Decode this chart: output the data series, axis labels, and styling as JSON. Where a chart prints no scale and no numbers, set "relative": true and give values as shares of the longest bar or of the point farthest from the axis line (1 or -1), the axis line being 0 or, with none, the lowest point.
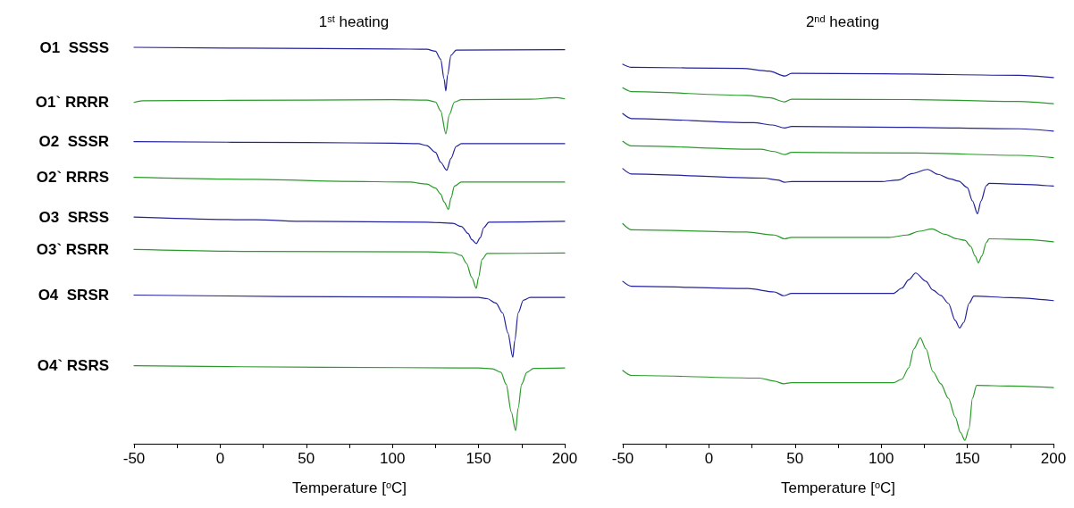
{
  "chart_data": [
    {
      "type": "line",
      "title": "1$^{st}$ heating",
      "xlabel": "Temperature [$^{o}$C]",
      "relative": true,
      "xlim": [
        -50,
        200
      ],
      "xticks": [
        -50,
        {
          "value": -25,
          "label": null
        },
        0,
        {
          "value": 25,
          "label": null
        },
        50,
        {
          "value": 75,
          "label": null
        },
        100,
        {
          "value": 125,
          "label": null
        },
        150,
        {
          "value": 175,
          "label": null
        },
        200
      ],
      "tick_labels": "x",
      "grid": false,
      "legend": false,
      "series": [
        {
          "name": "O1  SSSS",
          "color": "#22229a",
          "x": [
            -50,
            60,
            100,
            120,
            125,
            128,
            130,
            131,
            132,
            134,
            137,
            200
          ],
          "values": [
            1.0,
            0.997,
            0.996,
            0.995,
            0.99,
            0.97,
            0.92,
            0.89,
            0.93,
            0.98,
            0.993,
            0.994
          ]
        },
        {
          "name": "O1` RRRR",
          "color": "#2a9a2a",
          "x": [
            -50,
            -45,
            0,
            100,
            120,
            125,
            128,
            131,
            133,
            136,
            140,
            180,
            195,
            200
          ],
          "values": [
            0.861,
            0.865,
            0.866,
            0.868,
            0.867,
            0.862,
            0.84,
            0.782,
            0.83,
            0.862,
            0.868,
            0.869,
            0.873,
            0.87
          ]
        },
        {
          "name": "O2  SSSR",
          "color": "#22229a",
          "x": [
            -50,
            50,
            100,
            115,
            120,
            125,
            128,
            131.5,
            134,
            137,
            140,
            200
          ],
          "values": [
            0.762,
            0.76,
            0.758,
            0.757,
            0.752,
            0.735,
            0.71,
            0.69,
            0.72,
            0.75,
            0.757,
            0.757
          ]
        },
        {
          "name": "O2` RRRS",
          "color": "#2a9a2a",
          "x": [
            -50,
            20,
            70,
            110,
            120,
            125,
            128,
            130,
            132.5,
            134,
            136,
            140,
            200
          ],
          "values": [
            0.672,
            0.667,
            0.662,
            0.66,
            0.655,
            0.645,
            0.63,
            0.61,
            0.591,
            0.62,
            0.65,
            0.66,
            0.66
          ]
        },
        {
          "name": "O3  SRSS",
          "color": "#22229a",
          "x": [
            -50,
            20,
            50,
            120,
            135,
            140,
            144,
            146,
            148.7,
            151,
            153,
            156,
            200
          ],
          "values": [
            0.572,
            0.565,
            0.561,
            0.559,
            0.556,
            0.548,
            0.53,
            0.515,
            0.505,
            0.52,
            0.545,
            0.559,
            0.561
          ]
        },
        {
          "name": "O3` RSRR",
          "color": "#2a9a2a",
          "x": [
            -50,
            20,
            120,
            135,
            140,
            143,
            146,
            148.7,
            150,
            152,
            155,
            200
          ],
          "values": [
            0.49,
            0.485,
            0.484,
            0.482,
            0.475,
            0.455,
            0.42,
            0.392,
            0.42,
            0.465,
            0.48,
            0.481
          ]
        },
        {
          "name": "O4  SRSR",
          "color": "#22229a",
          "x": [
            -50,
            100,
            150,
            155,
            160,
            164,
            167,
            169.9,
            171,
            173,
            176,
            180,
            200
          ],
          "values": [
            0.375,
            0.37,
            0.369,
            0.366,
            0.355,
            0.33,
            0.28,
            0.218,
            0.26,
            0.33,
            0.362,
            0.369,
            0.369
          ]
        },
        {
          "name": "O4` RSRS",
          "color": "#2a9a2a",
          "x": [
            -50,
            60,
            150,
            158,
            163,
            166,
            169,
            171.5,
            173,
            175,
            178,
            182,
            200
          ],
          "values": [
            0.197,
            0.193,
            0.191,
            0.189,
            0.18,
            0.15,
            0.08,
            0.033,
            0.09,
            0.15,
            0.18,
            0.19,
            0.191
          ]
        }
      ]
    },
    {
      "type": "line",
      "title": "2$^{nd}$ heating",
      "xlabel": "Temperature [$^{o}$C]",
      "relative": true,
      "xlim": [
        -50,
        200
      ],
      "xticks": [
        -50,
        {
          "value": -25,
          "label": null
        },
        0,
        {
          "value": 25,
          "label": null
        },
        50,
        {
          "value": 75,
          "label": null
        },
        100,
        {
          "value": 125,
          "label": null
        },
        150,
        {
          "value": 175,
          "label": null
        },
        200
      ],
      "tick_labels": "x",
      "grid": false,
      "legend": false,
      "series": [
        {
          "color": "#22229a",
          "x": [
            -50,
            -45,
            19,
            35,
            44,
            48,
            100,
            180,
            200
          ],
          "values": [
            1.0,
            0.992,
            0.989,
            0.982,
            0.969,
            0.976,
            0.975,
            0.971,
            0.965
          ]
        },
        {
          "color": "#2a9a2a",
          "x": [
            -50,
            -45,
            22,
            35,
            44,
            48,
            120,
            180,
            200
          ],
          "values": [
            0.938,
            0.928,
            0.918,
            0.912,
            0.901,
            0.908,
            0.907,
            0.902,
            0.896
          ]
        },
        {
          "color": "#22229a",
          "x": [
            -50,
            -45,
            26,
            37,
            44,
            48,
            110,
            180,
            200
          ],
          "values": [
            0.87,
            0.857,
            0.846,
            0.84,
            0.832,
            0.836,
            0.834,
            0.83,
            0.824
          ]
        },
        {
          "color": "#2a9a2a",
          "x": [
            -50,
            -45,
            30,
            38,
            44,
            48,
            120,
            180,
            200
          ],
          "values": [
            0.797,
            0.785,
            0.776,
            0.77,
            0.762,
            0.768,
            0.766,
            0.76,
            0.754
          ]
        },
        {
          "color": "#22229a",
          "x": [
            -50,
            -45,
            32,
            40,
            44,
            48,
            100,
            110,
            118,
            126.9,
            133,
            140,
            145,
            150,
            153,
            155.9,
            158,
            161,
            162.7,
            180,
            200
          ],
          "values": [
            0.725,
            0.711,
            0.7,
            0.695,
            0.689,
            0.691,
            0.691,
            0.695,
            0.712,
            0.723,
            0.71,
            0.698,
            0.692,
            0.675,
            0.64,
            0.606,
            0.64,
            0.68,
            0.686,
            0.684,
            0.679
          ]
        },
        {
          "color": "#2a9a2a",
          "x": [
            -50,
            -45,
            22,
            38,
            44,
            48,
            105,
            115,
            122,
            129.5,
            137,
            144,
            148.6,
            152,
            154.5,
            156.4,
            158.5,
            161,
            162.7,
            185,
            200
          ],
          "values": [
            0.58,
            0.564,
            0.558,
            0.55,
            0.54,
            0.544,
            0.544,
            0.55,
            0.56,
            0.566,
            0.552,
            0.54,
            0.536,
            0.52,
            0.495,
            0.477,
            0.495,
            0.53,
            0.54,
            0.538,
            0.532
          ]
        },
        {
          "color": "#22229a",
          "x": [
            -50,
            -45,
            22.6,
            38,
            43.4,
            48,
            107,
            112,
            116,
            120,
            126,
            130,
            134.6,
            139,
            143,
            145.5,
            148,
            151,
            153.8,
            175,
            200
          ],
          "values": [
            0.428,
            0.415,
            0.409,
            0.4,
            0.39,
            0.396,
            0.396,
            0.41,
            0.432,
            0.45,
            0.428,
            0.405,
            0.391,
            0.37,
            0.325,
            0.305,
            0.32,
            0.37,
            0.389,
            0.385,
            0.377
          ]
        },
        {
          "color": "#2a9a2a",
          "x": [
            -50,
            -45,
            29.4,
            38,
            43.4,
            48,
            107,
            112,
            116,
            119,
            122.7,
            126,
            130,
            134.6,
            139,
            143,
            146,
            148.6,
            151,
            153,
            155.4,
            175,
            200
          ],
          "values": [
            0.193,
            0.18,
            0.173,
            0.165,
            0.158,
            0.161,
            0.161,
            0.17,
            0.2,
            0.25,
            0.279,
            0.25,
            0.19,
            0.158,
            0.12,
            0.07,
            0.03,
            0.009,
            0.04,
            0.12,
            0.154,
            0.152,
            0.148
          ]
        }
      ]
    }
  ]
}
